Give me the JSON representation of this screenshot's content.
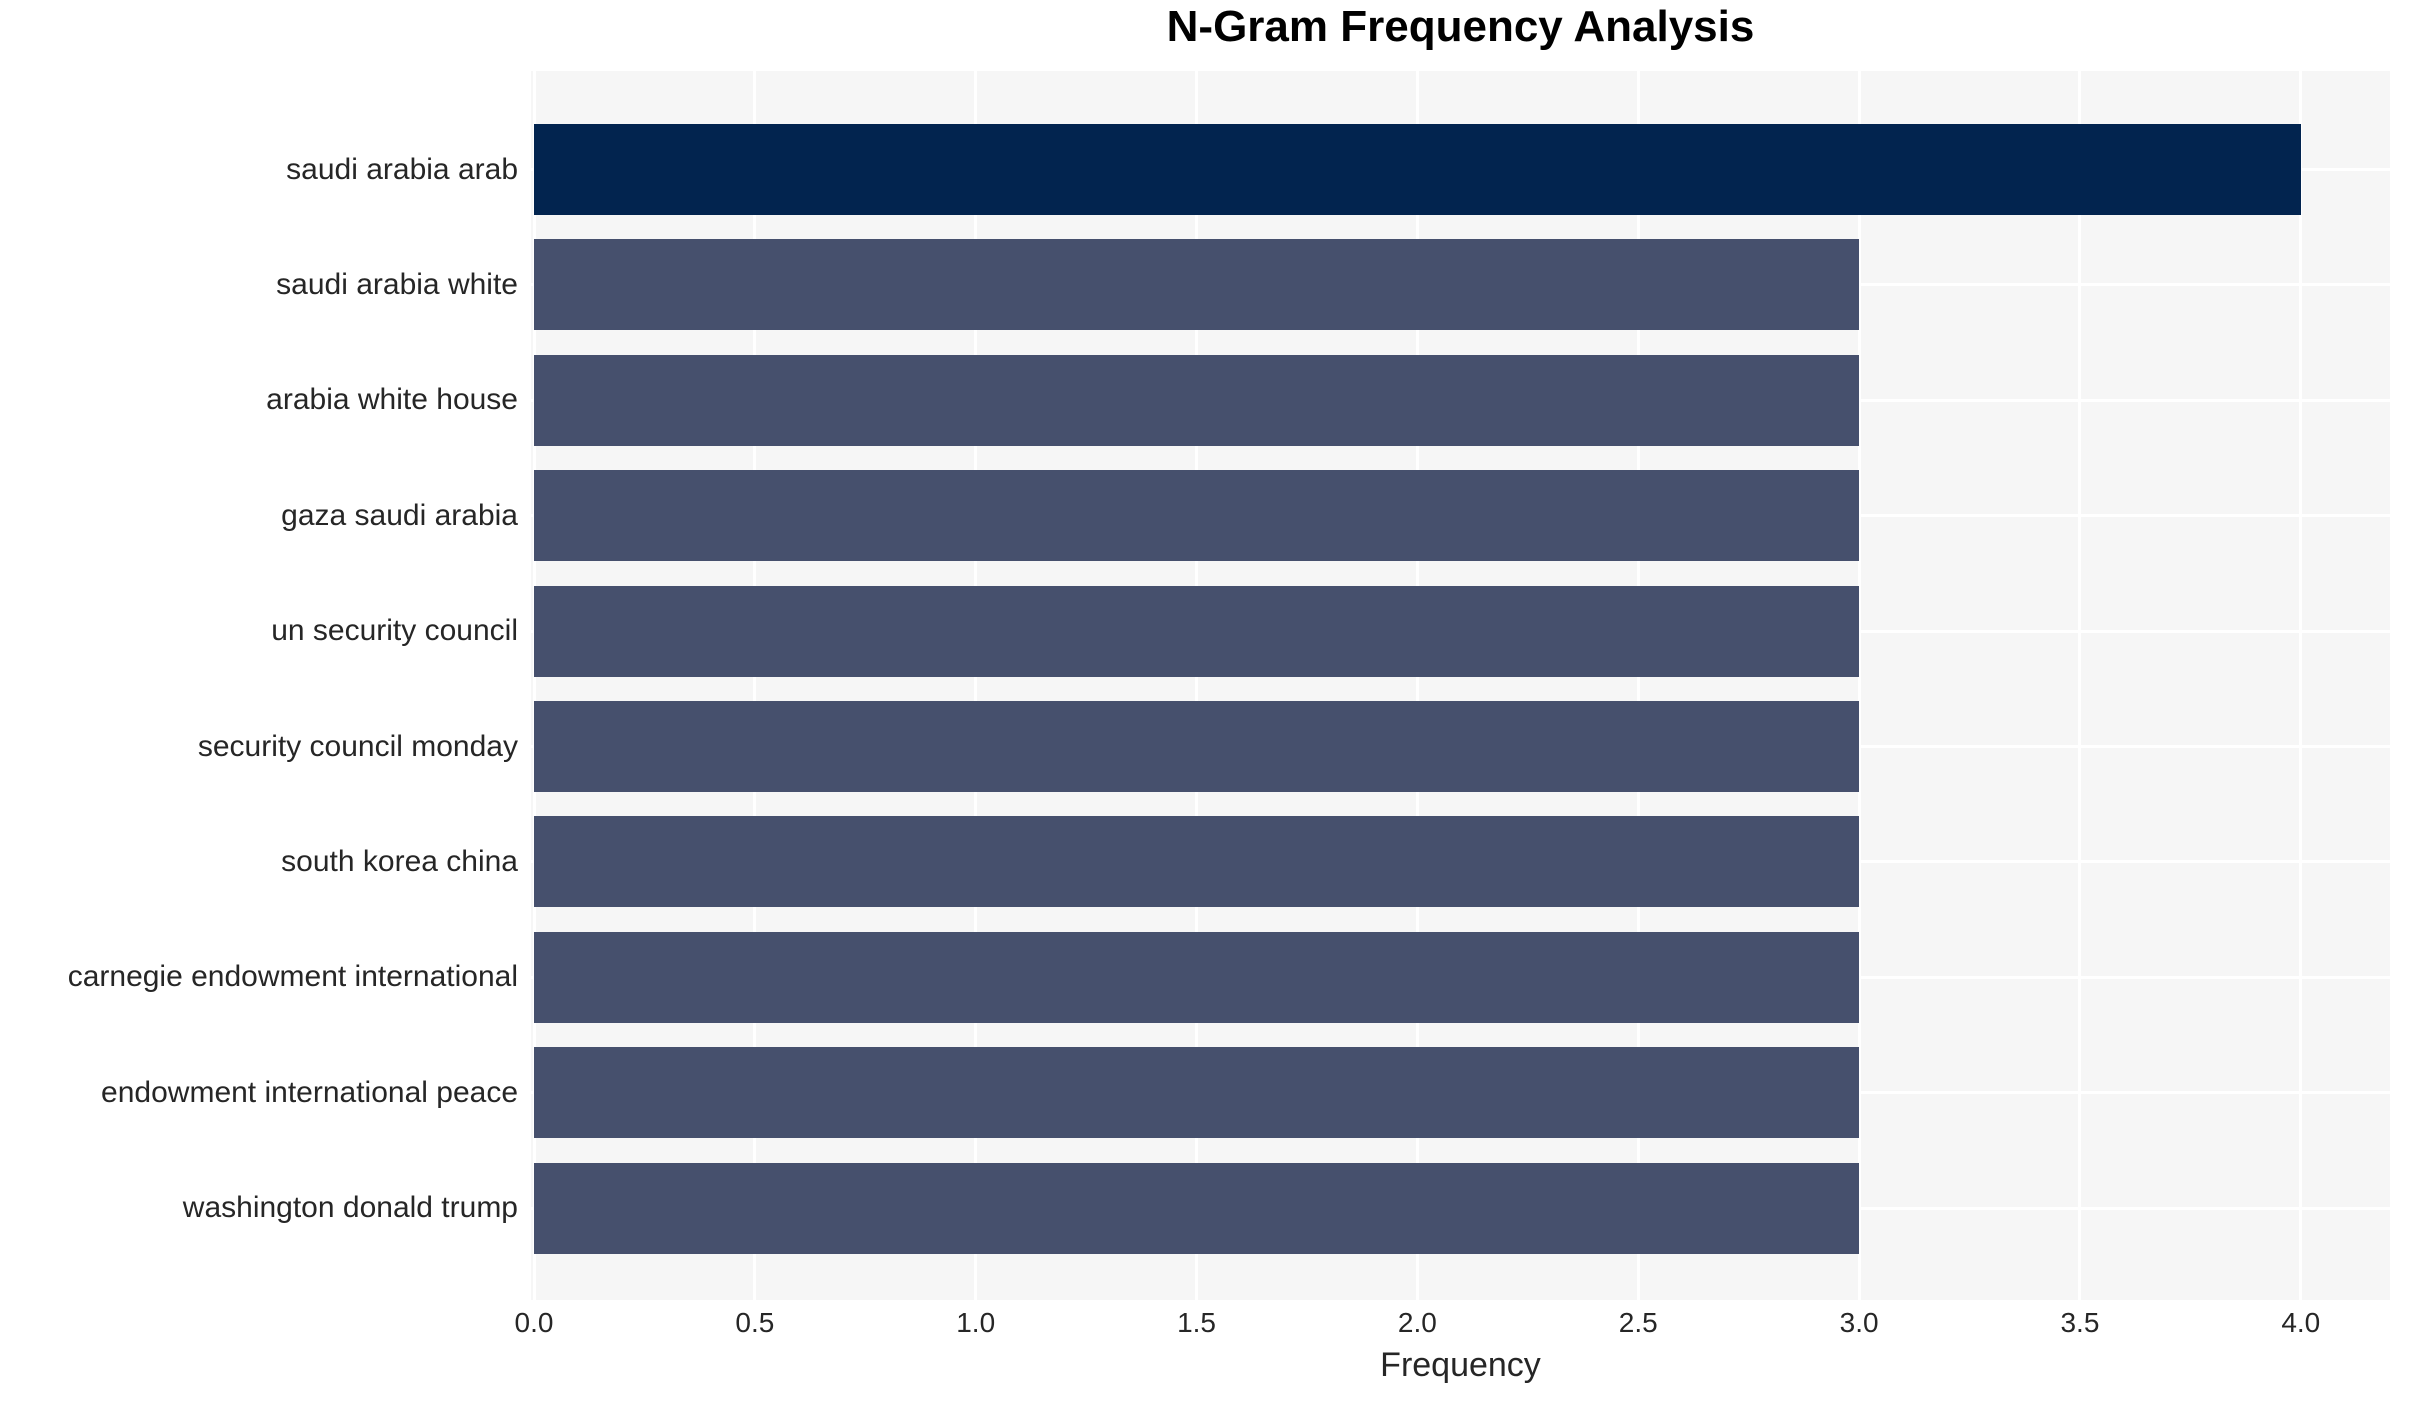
{
  "chart_data": {
    "type": "bar",
    "orientation": "horizontal",
    "title": "N-Gram Frequency Analysis",
    "xlabel": "Frequency",
    "ylabel": "",
    "categories": [
      "saudi arabia arab",
      "saudi arabia white",
      "arabia white house",
      "gaza saudi arabia",
      "un security council",
      "security council monday",
      "south korea china",
      "carnegie endowment international",
      "endowment international peace",
      "washington donald trump"
    ],
    "values": [
      4,
      3,
      3,
      3,
      3,
      3,
      3,
      3,
      3,
      3
    ],
    "xticks": [
      0.0,
      0.5,
      1.0,
      1.5,
      2.0,
      2.5,
      3.0,
      3.5,
      4.0
    ],
    "xtick_labels": [
      "0.0",
      "0.5",
      "1.0",
      "1.5",
      "2.0",
      "2.5",
      "3.0",
      "3.5",
      "4.0"
    ],
    "xlim": [
      0,
      4.2
    ],
    "grid": true,
    "legend_position": "none",
    "highlight_index": 0,
    "colors": {
      "bar_highlight": "#02244f",
      "bar_default": "#46506d",
      "plot_background": "#f6f6f6",
      "gridline": "#ffffff",
      "text": "#262626",
      "title": "#000000"
    }
  }
}
